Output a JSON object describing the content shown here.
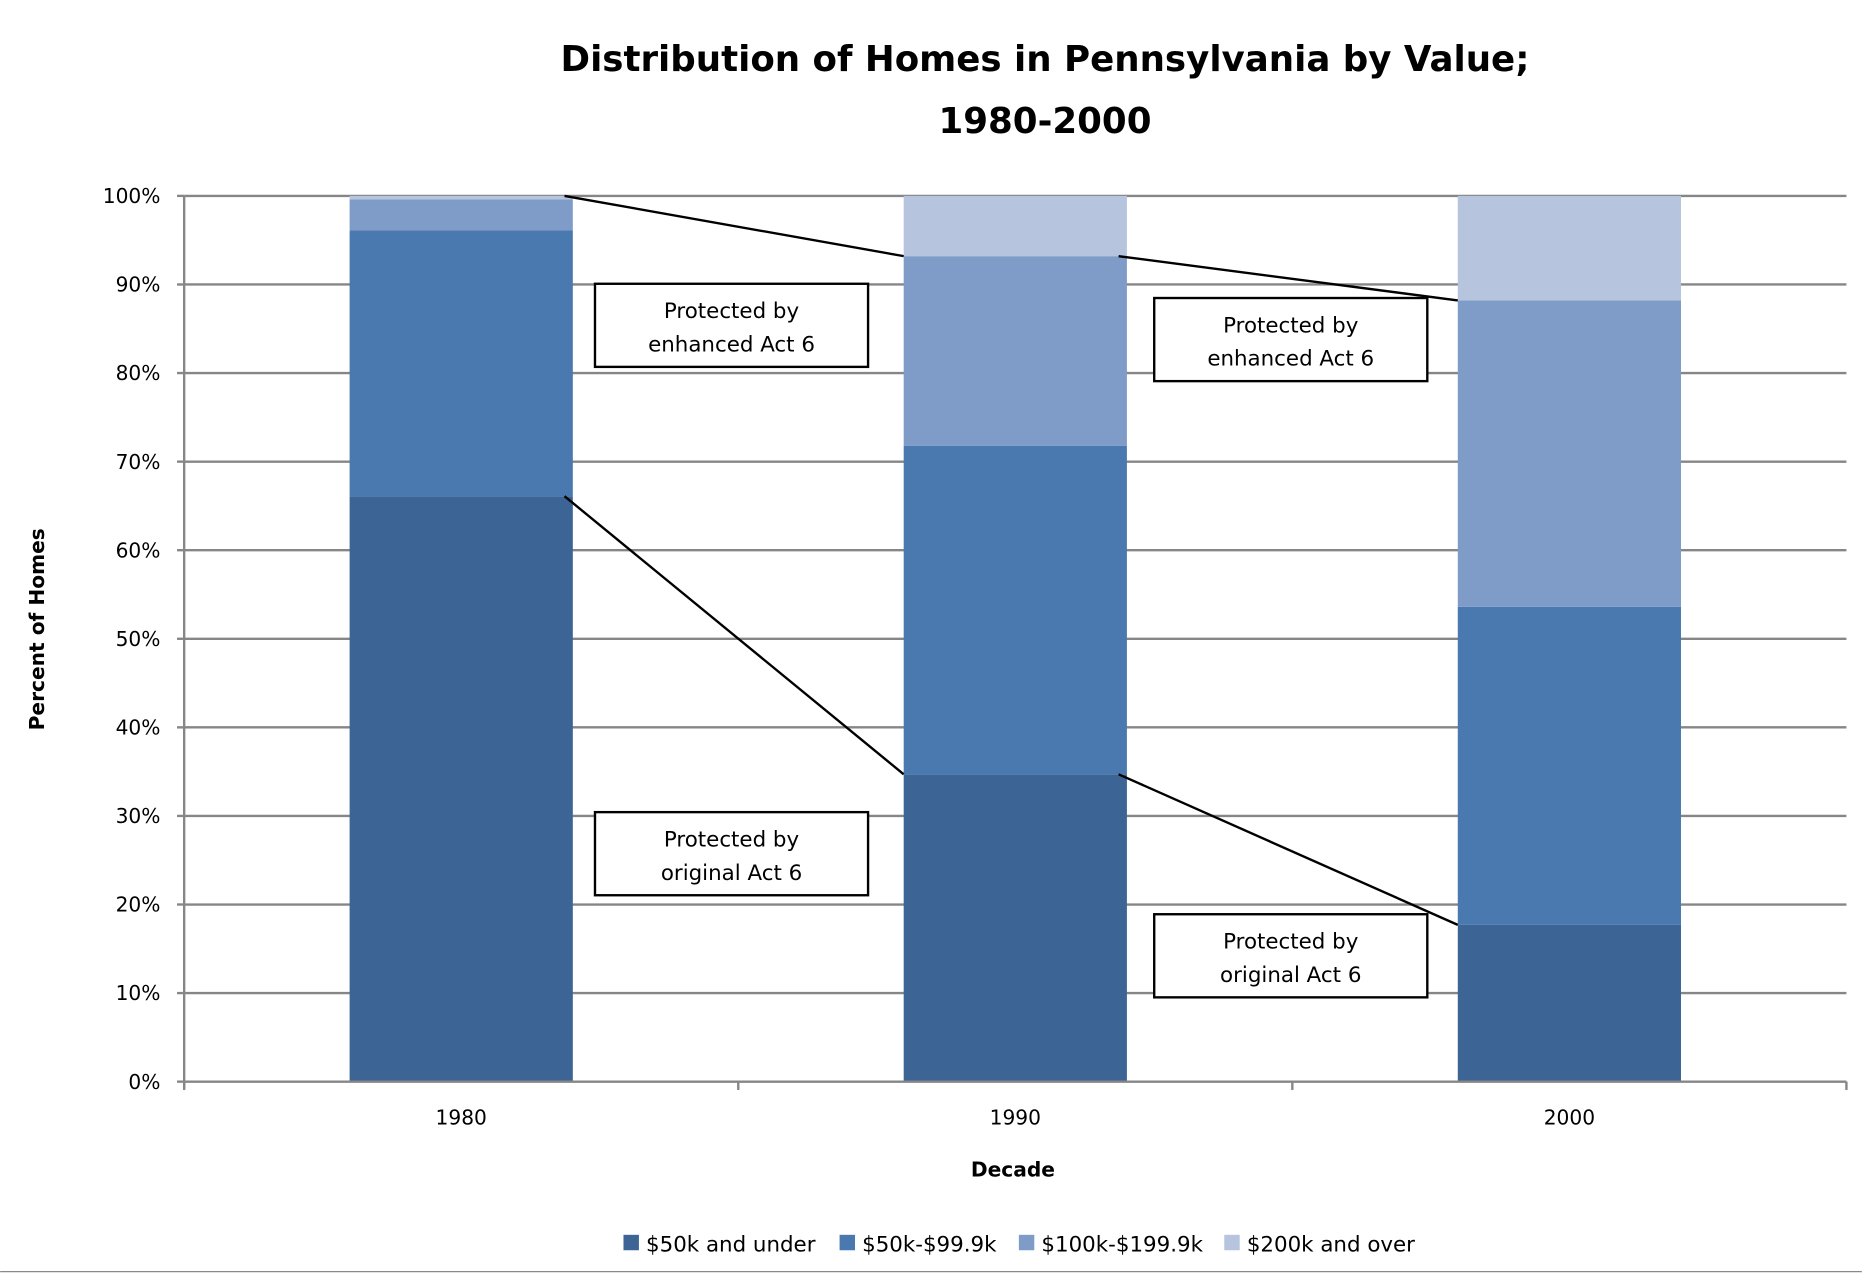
{
  "chart_data": {
    "type": "bar",
    "stacked": true,
    "normalized_percent": true,
    "title": "Distribution of Homes in Pennsylvania by Value;",
    "title_line2": "1980-2000",
    "xlabel": "Decade",
    "ylabel": "Percent of Homes",
    "categories": [
      "1980",
      "1990",
      "2000"
    ],
    "ylim": [
      0,
      100
    ],
    "yticks": [
      "0%",
      "10%",
      "20%",
      "30%",
      "40%",
      "50%",
      "60%",
      "70%",
      "80%",
      "90%",
      "100%"
    ],
    "grid": true,
    "legend_position": "bottom",
    "series": [
      {
        "name": "$50k and under",
        "color": "#3C6595",
        "values": [
          66.1,
          34.7,
          17.7
        ]
      },
      {
        "name": "$50k-$99.9k",
        "color": "#4A79B0",
        "values": [
          30.0,
          37.1,
          35.9
        ]
      },
      {
        "name": "$100k-$199.9k",
        "color": "#7F9CC9",
        "values": [
          3.5,
          21.4,
          34.6
        ]
      },
      {
        "name": "$200k and over",
        "color": "#B6C4DE",
        "values": [
          0.4,
          6.8,
          11.8
        ]
      }
    ],
    "annotations": [
      {
        "line1": "Protected by",
        "line2": "enhanced Act 6"
      },
      {
        "line1": "Protected by",
        "line2": "enhanced Act 6"
      },
      {
        "line1": "Protected by",
        "line2": "original Act 6"
      },
      {
        "line1": "Protected by",
        "line2": "original Act 6"
      }
    ]
  }
}
